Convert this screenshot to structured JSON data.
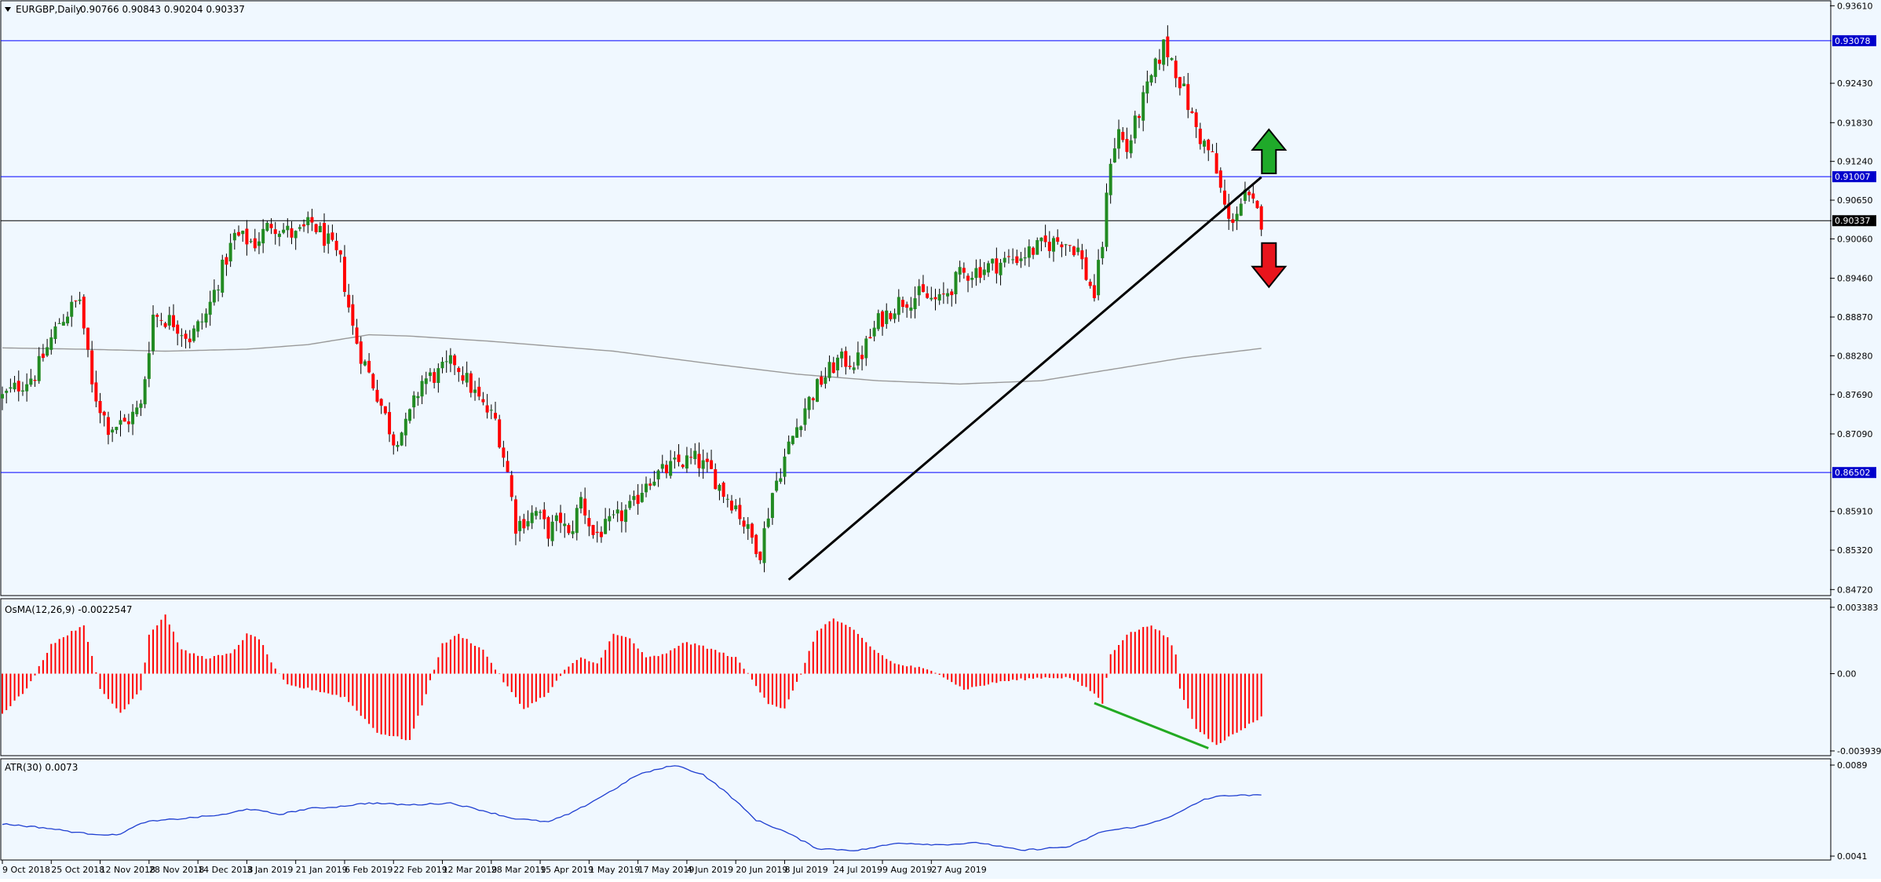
{
  "header": {
    "symbol": "EURGBP,Daily",
    "ohlc": "0.90766 0.90843 0.90204 0.90337"
  },
  "colors": {
    "background": "#f0f8ff",
    "bull": "#228b22",
    "bear": "#ff0000",
    "wick": "#000000",
    "level_line": "#0000ff",
    "price_line": "#000000",
    "moving_average": "#9a9a9a",
    "trendline": "#000000",
    "divergence_line": "#22aa22",
    "osma": "#ff0000",
    "atr": "#1f3fd1",
    "badge_bg": "#0000cc",
    "badge_text": "#ffffff",
    "arrow_up": "#1faa2a",
    "arrow_down": "#e8141c",
    "text": "#000000"
  },
  "chart_data": [
    {
      "type": "candlestick",
      "title": "EURGBP,Daily",
      "price_axis": {
        "ticks": [
          "0.93610",
          "0.92430",
          "0.91830",
          "0.91240",
          "0.90650",
          "0.90060",
          "0.89460",
          "0.88870",
          "0.88280",
          "0.87690",
          "0.87090",
          "0.85910",
          "0.85320",
          "0.84720"
        ],
        "range": [
          0.8464,
          0.9365
        ]
      },
      "time_axis": {
        "labels": [
          "9 Oct 2018",
          "25 Oct 2018",
          "12 Nov 2018",
          "28 Nov 2018",
          "14 Dec 2018",
          "3 Jan 2019",
          "21 Jan 2019",
          "6 Feb 2019",
          "22 Feb 2019",
          "12 Mar 2019",
          "28 Mar 2019",
          "15 Apr 2019",
          "1 May 2019",
          "17 May 2019",
          "4 Jun 2019",
          "20 Jun 2019",
          "8 Jul 2019",
          "24 Jul 2019",
          "9 Aug 2019",
          "27 Aug 2019"
        ],
        "bars_between_labels": 12
      },
      "close_path": [
        [
          0,
          0.8765
        ],
        [
          8,
          0.88
        ],
        [
          14,
          0.888
        ],
        [
          19,
          0.8915
        ],
        [
          22,
          0.878
        ],
        [
          26,
          0.872
        ],
        [
          30,
          0.8725
        ],
        [
          34,
          0.875
        ],
        [
          37,
          0.889
        ],
        [
          42,
          0.888
        ],
        [
          46,
          0.8855
        ],
        [
          50,
          0.889
        ],
        [
          54,
          0.896
        ],
        [
          57,
          0.901
        ],
        [
          62,
          0.9
        ],
        [
          66,
          0.903
        ],
        [
          72,
          0.901
        ],
        [
          76,
          0.903
        ],
        [
          80,
          0.9
        ],
        [
          83,
          0.897
        ],
        [
          86,
          0.887
        ],
        [
          88,
          0.883
        ],
        [
          92,
          0.877
        ],
        [
          96,
          0.87
        ],
        [
          99,
          0.872
        ],
        [
          103,
          0.879
        ],
        [
          107,
          0.88
        ],
        [
          111,
          0.882
        ],
        [
          115,
          0.878
        ],
        [
          118,
          0.875
        ],
        [
          121,
          0.873
        ],
        [
          124,
          0.865
        ],
        [
          126,
          0.857
        ],
        [
          131,
          0.859
        ],
        [
          134,
          0.856
        ],
        [
          137,
          0.858
        ],
        [
          139,
          0.855
        ],
        [
          142,
          0.861
        ],
        [
          145,
          0.8555
        ],
        [
          148,
          0.8565
        ],
        [
          152,
          0.8585
        ],
        [
          155,
          0.86
        ],
        [
          158,
          0.864
        ],
        [
          162,
          0.865
        ],
        [
          166,
          0.8665
        ],
        [
          170,
          0.867
        ],
        [
          174,
          0.865
        ],
        [
          177,
          0.862
        ],
        [
          180,
          0.86
        ],
        [
          183,
          0.856
        ],
        [
          186,
          0.853
        ],
        [
          189,
          0.862
        ],
        [
          193,
          0.869
        ],
        [
          197,
          0.875
        ],
        [
          201,
          0.879
        ],
        [
          205,
          0.882
        ],
        [
          210,
          0.882
        ],
        [
          215,
          0.888
        ],
        [
          220,
          0.891
        ],
        [
          225,
          0.892
        ],
        [
          230,
          0.891
        ],
        [
          235,
          0.895
        ],
        [
          240,
          0.896
        ],
        [
          245,
          0.897
        ],
        [
          250,
          0.898
        ],
        [
          255,
          0.8995
        ],
        [
          260,
          0.9005
        ],
        [
          264,
          0.899
        ],
        [
          266,
          0.895
        ],
        [
          268,
          0.892
        ],
        [
          270,
          0.9
        ],
        [
          272,
          0.913
        ],
        [
          274,
          0.917
        ],
        [
          276,
          0.914
        ],
        [
          279,
          0.92
        ],
        [
          282,
          0.925
        ],
        [
          285,
          0.93
        ],
        [
          287,
          0.928
        ],
        [
          290,
          0.923
        ],
        [
          292,
          0.919
        ],
        [
          294,
          0.916
        ],
        [
          297,
          0.913
        ],
        [
          299,
          0.908
        ],
        [
          301,
          0.903
        ],
        [
          303,
          0.905
        ],
        [
          305,
          0.907
        ],
        [
          307,
          0.9055
        ],
        [
          309,
          0.9034
        ]
      ],
      "bars": 310,
      "moving_average_path": [
        [
          0,
          0.884
        ],
        [
          20,
          0.8838
        ],
        [
          40,
          0.8835
        ],
        [
          60,
          0.8838
        ],
        [
          75,
          0.8845
        ],
        [
          90,
          0.886
        ],
        [
          100,
          0.8858
        ],
        [
          120,
          0.885
        ],
        [
          150,
          0.8835
        ],
        [
          175,
          0.8815
        ],
        [
          195,
          0.88
        ],
        [
          215,
          0.879
        ],
        [
          235,
          0.8785
        ],
        [
          255,
          0.879
        ],
        [
          270,
          0.8805
        ],
        [
          290,
          0.8825
        ],
        [
          310,
          0.884
        ]
      ],
      "levels": [
        {
          "value": 0.93078,
          "label": "0.93078"
        },
        {
          "value": 0.91007,
          "label": "0.91007"
        },
        {
          "value": 0.86502,
          "label": "0.86502"
        }
      ],
      "current_price": {
        "value": 0.90337,
        "label": "0.90337"
      },
      "trendline": {
        "from": [
          193,
          0.8487
        ],
        "to": [
          309,
          0.91
        ]
      },
      "arrows": [
        {
          "direction": "up",
          "bar": 307,
          "price": 0.9132
        },
        {
          "direction": "down",
          "bar": 307,
          "price": 0.9002
        }
      ]
    },
    {
      "type": "histogram",
      "title": "OsMA(12,26,9) -0.0022547",
      "y_ticks": [
        "0.003383",
        "0.00",
        "-0.003939"
      ],
      "range": [
        -0.00394,
        0.00338
      ],
      "path": [
        [
          0,
          -0.002
        ],
        [
          6,
          -0.0008
        ],
        [
          12,
          0.0015
        ],
        [
          20,
          0.0025
        ],
        [
          24,
          -0.0008
        ],
        [
          29,
          -0.002
        ],
        [
          34,
          -0.0008
        ],
        [
          36,
          0.002
        ],
        [
          40,
          0.003
        ],
        [
          44,
          0.0012
        ],
        [
          50,
          0.0008
        ],
        [
          56,
          0.001
        ],
        [
          60,
          0.002
        ],
        [
          63,
          0.0018
        ],
        [
          67,
          0.0002
        ],
        [
          70,
          -0.0006
        ],
        [
          76,
          -0.0008
        ],
        [
          84,
          -0.0012
        ],
        [
          92,
          -0.003
        ],
        [
          100,
          -0.0034
        ],
        [
          104,
          -0.001
        ],
        [
          108,
          0.0015
        ],
        [
          112,
          0.002
        ],
        [
          118,
          0.0012
        ],
        [
          123,
          -0.0004
        ],
        [
          128,
          -0.0018
        ],
        [
          134,
          -0.001
        ],
        [
          138,
          0.0002
        ],
        [
          142,
          0.0008
        ],
        [
          146,
          0.0005
        ],
        [
          150,
          0.002
        ],
        [
          154,
          0.0018
        ],
        [
          158,
          0.0008
        ],
        [
          163,
          0.001
        ],
        [
          167,
          0.0016
        ],
        [
          172,
          0.0014
        ],
        [
          180,
          0.0008
        ],
        [
          183,
          0.0
        ],
        [
          188,
          -0.0015
        ],
        [
          192,
          -0.0018
        ],
        [
          196,
          0.0
        ],
        [
          200,
          0.0022
        ],
        [
          204,
          0.0028
        ],
        [
          209,
          0.0022
        ],
        [
          214,
          0.0012
        ],
        [
          219,
          0.0005
        ],
        [
          225,
          0.0003
        ],
        [
          230,
          0.0
        ],
        [
          236,
          -0.0008
        ],
        [
          245,
          -0.0004
        ],
        [
          255,
          -0.0002
        ],
        [
          262,
          -0.0002
        ],
        [
          268,
          -0.001
        ],
        [
          270,
          -0.0015
        ],
        [
          272,
          0.001
        ],
        [
          276,
          0.002
        ],
        [
          282,
          0.0025
        ],
        [
          286,
          0.0018
        ],
        [
          288,
          0.001
        ],
        [
          289,
          -0.0008
        ],
        [
          293,
          -0.0028
        ],
        [
          298,
          -0.0036
        ],
        [
          303,
          -0.003
        ],
        [
          309,
          -0.0022
        ]
      ],
      "divergence_line": {
        "from": [
          268,
          -0.0015
        ],
        "to": [
          296,
          -0.0038
        ]
      }
    },
    {
      "type": "line",
      "title": "ATR(30) 0.0073",
      "y_ticks": [
        "0.0089",
        "0.0041"
      ],
      "range": [
        0.0041,
        0.0089
      ],
      "path": [
        [
          0,
          0.0058
        ],
        [
          10,
          0.0056
        ],
        [
          20,
          0.0053
        ],
        [
          28,
          0.0052
        ],
        [
          35,
          0.0059
        ],
        [
          45,
          0.0061
        ],
        [
          55,
          0.0063
        ],
        [
          60,
          0.0066
        ],
        [
          68,
          0.0063
        ],
        [
          75,
          0.0066
        ],
        [
          82,
          0.0067
        ],
        [
          90,
          0.0069
        ],
        [
          100,
          0.0068
        ],
        [
          110,
          0.0069
        ],
        [
          118,
          0.0065
        ],
        [
          125,
          0.0061
        ],
        [
          134,
          0.0059
        ],
        [
          140,
          0.0064
        ],
        [
          150,
          0.0076
        ],
        [
          156,
          0.0084
        ],
        [
          165,
          0.0089
        ],
        [
          172,
          0.0084
        ],
        [
          178,
          0.0074
        ],
        [
          185,
          0.006
        ],
        [
          192,
          0.0054
        ],
        [
          200,
          0.0045
        ],
        [
          210,
          0.0044
        ],
        [
          220,
          0.0048
        ],
        [
          230,
          0.0047
        ],
        [
          240,
          0.0048
        ],
        [
          250,
          0.0044
        ],
        [
          262,
          0.0046
        ],
        [
          270,
          0.0054
        ],
        [
          280,
          0.0057
        ],
        [
          288,
          0.0063
        ],
        [
          295,
          0.0071
        ],
        [
          300,
          0.0073
        ],
        [
          309,
          0.0073
        ]
      ]
    }
  ]
}
